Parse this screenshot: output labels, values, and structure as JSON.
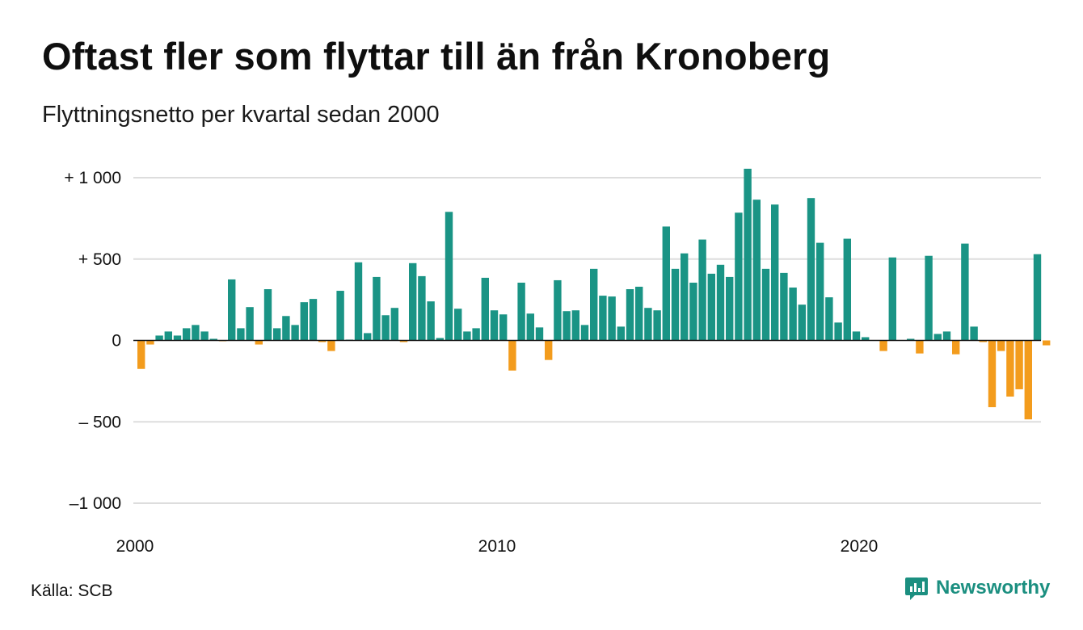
{
  "title": "Oftast fler som flyttar till än från Kronoberg",
  "subtitle": "Flyttningsnetto per kvartal sedan 2000",
  "source": "Källa: SCB",
  "brand": "Newsworthy",
  "colors": {
    "positive": "#1a9485",
    "negative": "#f39c1d",
    "grid": "#dddddd",
    "zero": "#111111"
  },
  "chart_data": {
    "type": "bar",
    "start": "2000 Q1",
    "period": "quarter",
    "ylim": [
      -1000,
      1000
    ],
    "y_ticks": [
      {
        "value": 1000,
        "label": "+ 1 000"
      },
      {
        "value": 500,
        "label": "+   500"
      },
      {
        "value": 0,
        "label": "0"
      },
      {
        "value": -500,
        "label": "– 500"
      },
      {
        "value": -1000,
        "label": "–1 000"
      }
    ],
    "x_ticks": [
      {
        "label": "2000"
      },
      {
        "label": "2010"
      },
      {
        "label": "2020"
      }
    ],
    "values": [
      -175,
      -25,
      30,
      55,
      30,
      75,
      95,
      55,
      10,
      -5,
      375,
      75,
      205,
      -25,
      315,
      75,
      150,
      95,
      235,
      255,
      -10,
      -65,
      305,
      5,
      480,
      45,
      390,
      155,
      200,
      -10,
      475,
      395,
      240,
      15,
      790,
      195,
      55,
      75,
      385,
      185,
      160,
      -185,
      355,
      165,
      80,
      -120,
      370,
      180,
      185,
      95,
      440,
      275,
      270,
      85,
      315,
      330,
      200,
      185,
      700,
      440,
      535,
      355,
      620,
      410,
      465,
      390,
      785,
      1055,
      865,
      440,
      835,
      415,
      325,
      220,
      875,
      600,
      265,
      110,
      625,
      55,
      20,
      0,
      -65,
      510,
      0,
      10,
      -80,
      520,
      40,
      55,
      -85,
      595,
      85,
      -10,
      -410,
      -65,
      -345,
      -300,
      -485,
      530,
      -30
    ]
  }
}
